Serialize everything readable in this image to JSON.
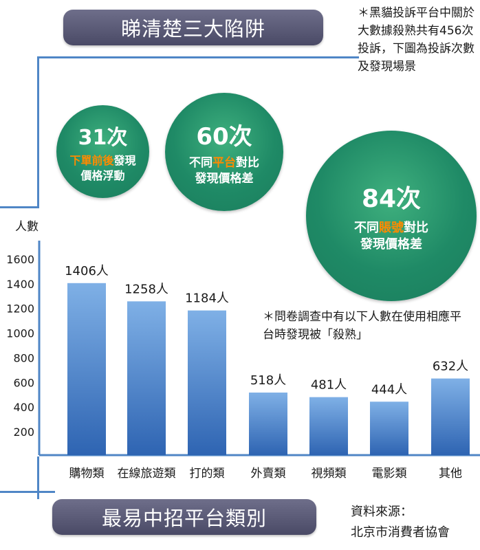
{
  "banners": {
    "title": "睇清楚三大陷阱",
    "bottom": "最易中招平台類別"
  },
  "notes": {
    "top": "＊黑貓投訴平台中關於大數據殺熟共有456次投訴，下圖為投訴次數及發現場景",
    "middle": "＊問卷調查中有以下人數在使用相應平台時發現被「殺熟」"
  },
  "source": {
    "label": "資料來源：",
    "org": "北京市消費者協會"
  },
  "traps": [
    {
      "count": "31次",
      "line1_highlight": "下單前後",
      "line1_rest": "發現",
      "line2_pre": "",
      "line2_highlight": "",
      "line2_rest": "價格浮動"
    },
    {
      "count": "60次",
      "line1_highlight": "",
      "line1_rest": "",
      "line2_pre": "不同",
      "line2_highlight": "平台",
      "line2_rest": "對比",
      "line3": "發現價格差"
    },
    {
      "count": "84次",
      "line2_pre": "不同",
      "line2_highlight": "賬號",
      "line2_rest": "對比",
      "line3": "發現價格差"
    }
  ],
  "colors": {
    "bar_top": "#7fb0e6",
    "bar_bottom": "#2e64b2",
    "highlight": "#ff8a00",
    "circle": "#1f8a66",
    "banner": "#5a5a78"
  },
  "chart_data": {
    "type": "bar",
    "ylabel": "人數",
    "yticks": [
      200,
      400,
      600,
      800,
      1000,
      1200,
      1400,
      1600
    ],
    "ylim": [
      0,
      1700
    ],
    "categories": [
      "購物類",
      "在線旅遊類",
      "打的類",
      "外賣類",
      "視頻類",
      "電影類",
      "其他"
    ],
    "values": [
      1406,
      1258,
      1184,
      518,
      481,
      444,
      632
    ],
    "data_labels": [
      "1406人",
      "1258人",
      "1184人",
      "518人",
      "481人",
      "444人",
      "632人"
    ]
  }
}
